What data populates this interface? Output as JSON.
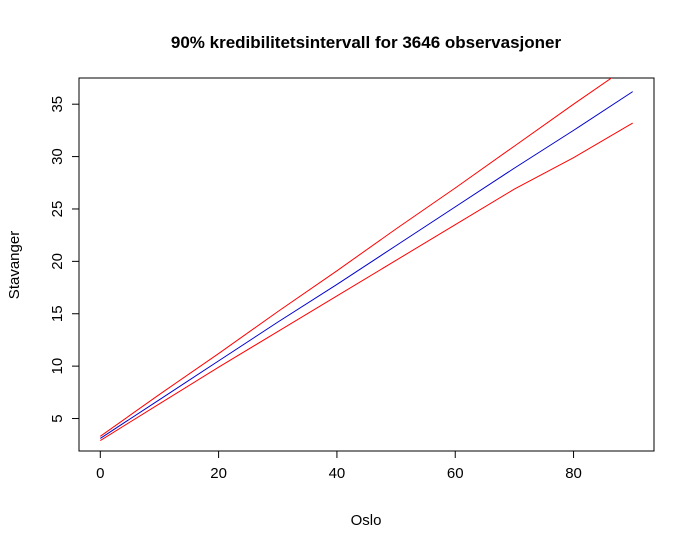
{
  "chart_data": {
    "type": "line",
    "title": "90% kredibilitetsintervall for 3646 observasjoner",
    "xlabel": "Oslo",
    "ylabel": "Stavanger",
    "xlim": [
      -3.6,
      93.6
    ],
    "ylim": [
      1.9,
      37.5
    ],
    "xticks": [
      0,
      20,
      40,
      60,
      80
    ],
    "yticks": [
      5,
      10,
      15,
      20,
      25,
      30,
      35
    ],
    "grid": false,
    "legend": "none",
    "series": [
      {
        "color": "#ff0000",
        "x": [
          0,
          10,
          20,
          30,
          40,
          50,
          60,
          70,
          80,
          90
        ],
        "y": [
          3.3,
          7.3,
          11.2,
          15.2,
          19.1,
          23.1,
          27.0,
          31.0,
          35.0,
          38.9
        ]
      },
      {
        "color": "#0000cc",
        "x": [
          0,
          10,
          20,
          30,
          40,
          50,
          60,
          70,
          80,
          90
        ],
        "y": [
          3.1,
          6.8,
          10.5,
          14.2,
          17.8,
          21.5,
          25.2,
          28.9,
          32.5,
          36.2
        ]
      },
      {
        "color": "#ff0000",
        "x": [
          0,
          10,
          20,
          30,
          40,
          50,
          60,
          70,
          80,
          90
        ],
        "y": [
          2.9,
          6.4,
          9.9,
          13.3,
          16.7,
          20.1,
          23.5,
          26.9,
          29.9,
          33.2
        ]
      }
    ]
  }
}
